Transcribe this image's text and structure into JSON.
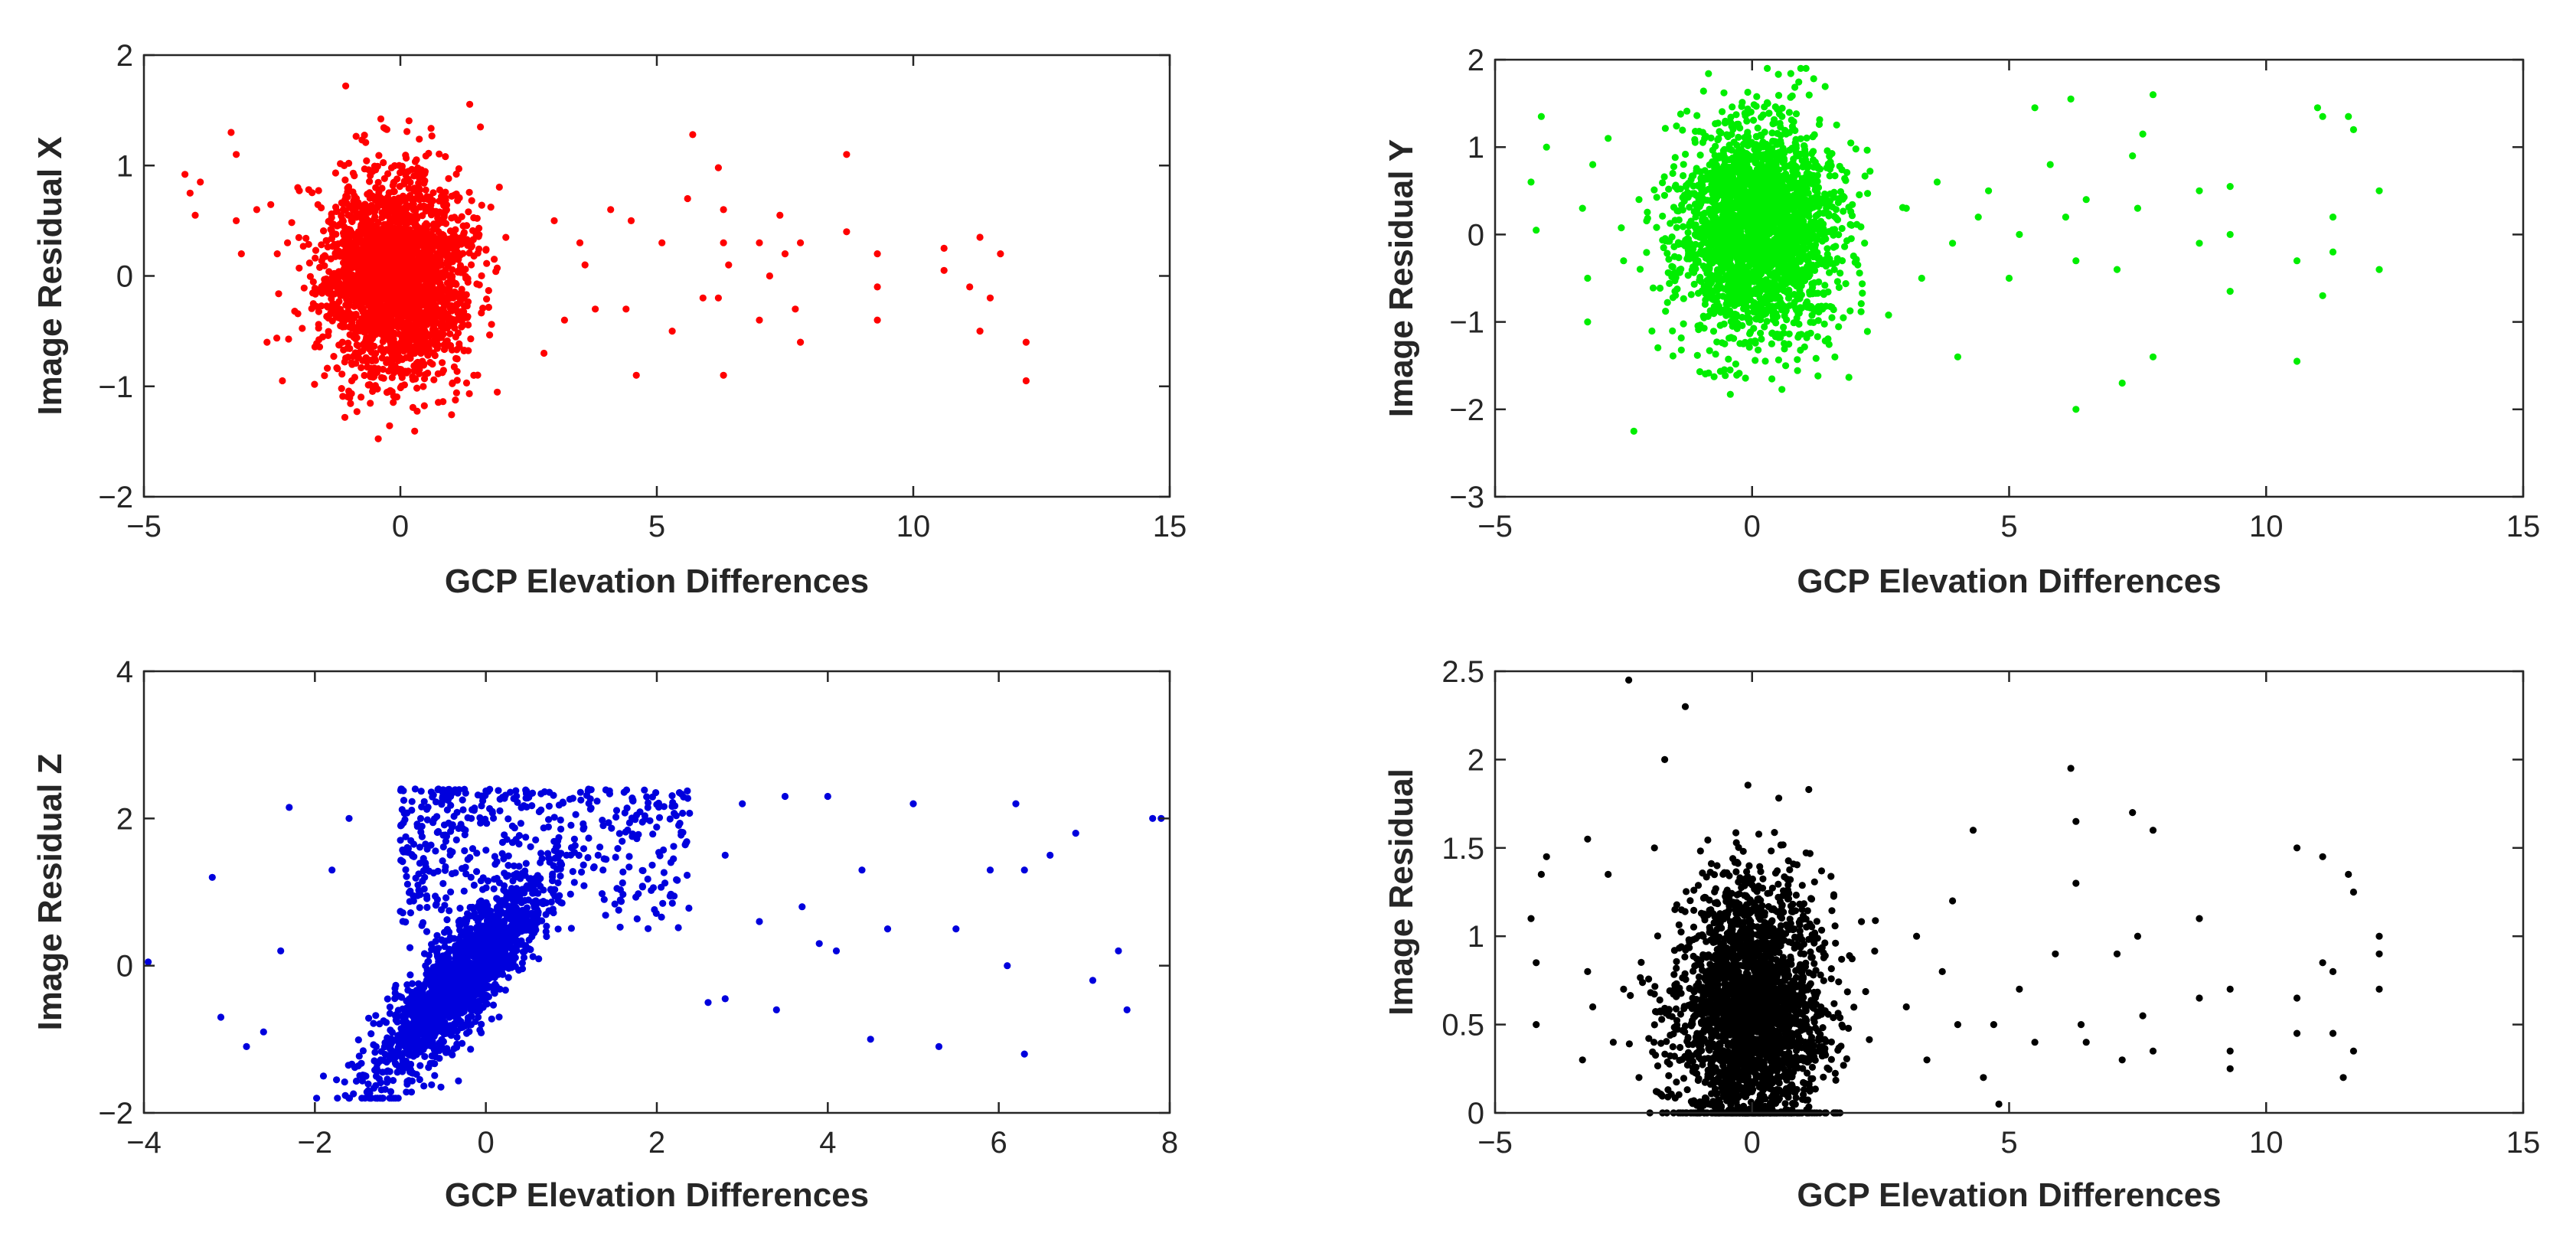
{
  "chart_data": [
    {
      "id": "residual-x",
      "type": "scatter",
      "title": "",
      "xlabel": "GCP Elevation Differences",
      "ylabel": "Image Residual X",
      "xlim": [
        -5,
        15
      ],
      "ylim": [
        -2,
        2
      ],
      "xticks": [
        -5,
        0,
        5,
        10,
        15
      ],
      "xtick_labels": [
        "−5",
        "0",
        "5",
        "10",
        "15"
      ],
      "yticks": [
        -2,
        -1,
        0,
        1,
        2
      ],
      "ytick_labels": [
        "−2",
        "−1",
        "0",
        "1",
        "2"
      ],
      "color": "#ff0000",
      "grid": false,
      "cloud": {
        "cx": -0.1,
        "cy": 0.0,
        "sx": 0.7,
        "sy": 0.45,
        "n": 2600,
        "rho": 0.0,
        "ymin": -1.6,
        "ymax": 1.75,
        "seed": 11
      },
      "points": [
        [
          -4.2,
          0.92
        ],
        [
          -4.1,
          0.75
        ],
        [
          -4.0,
          0.55
        ],
        [
          -3.9,
          0.85
        ],
        [
          -3.3,
          1.3
        ],
        [
          -3.2,
          1.1
        ],
        [
          -3.2,
          0.5
        ],
        [
          -3.1,
          0.2
        ],
        [
          -2.8,
          0.6
        ],
        [
          -2.6,
          -0.6
        ],
        [
          -2.4,
          0.2
        ],
        [
          -2.3,
          -0.95
        ],
        [
          -2.2,
          0.3
        ],
        [
          -2.0,
          0.8
        ],
        [
          2.8,
          -0.7
        ],
        [
          3.0,
          0.5
        ],
        [
          3.2,
          -0.4
        ],
        [
          3.5,
          0.3
        ],
        [
          3.6,
          0.1
        ],
        [
          3.8,
          -0.3
        ],
        [
          4.1,
          0.6
        ],
        [
          4.4,
          -0.3
        ],
        [
          4.5,
          0.5
        ],
        [
          4.6,
          -0.9
        ],
        [
          5.1,
          0.3
        ],
        [
          5.3,
          -0.5
        ],
        [
          5.6,
          0.7
        ],
        [
          5.7,
          1.28
        ],
        [
          5.9,
          -0.2
        ],
        [
          6.2,
          0.98
        ],
        [
          6.3,
          0.6
        ],
        [
          6.3,
          0.3
        ],
        [
          6.2,
          -0.2
        ],
        [
          6.3,
          -0.9
        ],
        [
          6.4,
          0.1
        ],
        [
          7.0,
          0.3
        ],
        [
          7.0,
          -0.4
        ],
        [
          7.2,
          0.0
        ],
        [
          7.4,
          0.55
        ],
        [
          7.5,
          0.2
        ],
        [
          7.7,
          -0.3
        ],
        [
          7.8,
          0.3
        ],
        [
          7.8,
          -0.6
        ],
        [
          8.7,
          1.1
        ],
        [
          8.7,
          0.4
        ],
        [
          9.3,
          0.2
        ],
        [
          9.3,
          -0.1
        ],
        [
          9.3,
          -0.4
        ],
        [
          10.6,
          0.25
        ],
        [
          10.6,
          0.05
        ],
        [
          11.1,
          -0.1
        ],
        [
          11.3,
          0.35
        ],
        [
          11.3,
          -0.5
        ],
        [
          11.5,
          -0.2
        ],
        [
          11.7,
          0.2
        ],
        [
          12.2,
          -0.6
        ],
        [
          12.2,
          -0.95
        ]
      ]
    },
    {
      "id": "residual-y",
      "type": "scatter",
      "title": "",
      "xlabel": "GCP Elevation Differences",
      "ylabel": "Image Residual Y",
      "xlim": [
        -5,
        15
      ],
      "ylim": [
        -3,
        2
      ],
      "xticks": [
        -5,
        0,
        5,
        10,
        15
      ],
      "xtick_labels": [
        "−5",
        "0",
        "5",
        "10",
        "15"
      ],
      "yticks": [
        -3,
        -2,
        -1,
        0,
        1,
        2
      ],
      "ytick_labels": [
        "−3",
        "−2",
        "−1",
        "0",
        "1",
        "2"
      ],
      "color": "#00ee00",
      "grid": false,
      "cloud": {
        "cx": 0.1,
        "cy": 0.05,
        "sx": 0.75,
        "sy": 0.6,
        "n": 2600,
        "rho": 0.0,
        "ymin": -2.3,
        "ymax": 1.9,
        "seed": 23
      },
      "points": [
        [
          -4.3,
          0.6
        ],
        [
          -4.2,
          0.05
        ],
        [
          -4.1,
          1.35
        ],
        [
          -4.0,
          1.0
        ],
        [
          -3.3,
          0.3
        ],
        [
          -3.2,
          -0.5
        ],
        [
          -3.2,
          -1.0
        ],
        [
          -3.1,
          0.8
        ],
        [
          -2.8,
          1.1
        ],
        [
          -2.5,
          -0.3
        ],
        [
          -2.3,
          -2.25
        ],
        [
          -2.2,
          0.4
        ],
        [
          3.0,
          0.3
        ],
        [
          3.3,
          -0.5
        ],
        [
          3.6,
          0.6
        ],
        [
          3.9,
          -0.1
        ],
        [
          4.0,
          -1.4
        ],
        [
          4.4,
          0.2
        ],
        [
          4.6,
          0.5
        ],
        [
          5.0,
          -0.5
        ],
        [
          5.2,
          0.0
        ],
        [
          5.5,
          1.45
        ],
        [
          5.8,
          0.8
        ],
        [
          6.1,
          0.2
        ],
        [
          6.2,
          1.55
        ],
        [
          6.3,
          -0.3
        ],
        [
          6.3,
          -2.0
        ],
        [
          6.5,
          0.4
        ],
        [
          7.1,
          -0.4
        ],
        [
          7.2,
          -1.7
        ],
        [
          7.4,
          0.9
        ],
        [
          7.5,
          0.3
        ],
        [
          7.6,
          1.15
        ],
        [
          7.8,
          1.6
        ],
        [
          7.8,
          -1.4
        ],
        [
          8.7,
          0.5
        ],
        [
          8.7,
          -0.1
        ],
        [
          9.3,
          0.55
        ],
        [
          9.3,
          0.0
        ],
        [
          9.3,
          -0.65
        ],
        [
          10.6,
          -0.3
        ],
        [
          10.6,
          -1.45
        ],
        [
          11.0,
          1.45
        ],
        [
          11.1,
          1.35
        ],
        [
          11.1,
          -0.7
        ],
        [
          11.3,
          0.2
        ],
        [
          11.3,
          -0.2
        ],
        [
          11.6,
          1.35
        ],
        [
          11.7,
          1.2
        ],
        [
          12.2,
          0.5
        ],
        [
          12.2,
          -0.4
        ]
      ]
    },
    {
      "id": "residual-z",
      "type": "scatter",
      "title": "",
      "xlabel": "GCP Elevation Differences",
      "ylabel": "Image Residual Z",
      "xlim": [
        -4,
        8
      ],
      "ylim": [
        -2,
        4
      ],
      "xticks": [
        -4,
        -2,
        0,
        2,
        4,
        6,
        8
      ],
      "xtick_labels": [
        "−4",
        "−2",
        "0",
        "2",
        "4",
        "6",
        "8"
      ],
      "yticks": [
        -2,
        0,
        2,
        4
      ],
      "ytick_labels": [
        "−2",
        "0",
        "2",
        "4"
      ],
      "color": "#0000dd",
      "grid": false,
      "cloud": {
        "cx": -0.3,
        "cy": -0.2,
        "sx": 0.5,
        "sy": 0.7,
        "n": 1800,
        "rho": 0.85,
        "ymin": -1.8,
        "ymax": 2.4,
        "seed": 37
      },
      "band": {
        "xmin": -1.0,
        "xmax": 2.4,
        "ymin": 0.5,
        "ymax": 2.4,
        "n": 450,
        "seed": 41
      },
      "points": [
        [
          -3.95,
          0.05
        ],
        [
          -3.2,
          1.2
        ],
        [
          -3.1,
          -0.7
        ],
        [
          -2.8,
          -1.1
        ],
        [
          -2.6,
          -0.9
        ],
        [
          -2.4,
          0.2
        ],
        [
          -2.3,
          2.15
        ],
        [
          -1.9,
          -1.5
        ],
        [
          -1.8,
          1.3
        ],
        [
          -1.6,
          2.0
        ],
        [
          2.6,
          -0.5
        ],
        [
          2.8,
          1.5
        ],
        [
          2.8,
          -0.45
        ],
        [
          3.0,
          2.2
        ],
        [
          3.2,
          0.6
        ],
        [
          3.4,
          -0.6
        ],
        [
          3.5,
          2.3
        ],
        [
          3.7,
          0.8
        ],
        [
          3.9,
          0.3
        ],
        [
          4.0,
          2.3
        ],
        [
          4.1,
          0.2
        ],
        [
          4.4,
          1.3
        ],
        [
          4.5,
          -1.0
        ],
        [
          4.7,
          0.5
        ],
        [
          5.0,
          2.2
        ],
        [
          5.3,
          -1.1
        ],
        [
          5.5,
          0.5
        ],
        [
          5.9,
          1.3
        ],
        [
          6.1,
          0.0
        ],
        [
          6.2,
          2.2
        ],
        [
          6.3,
          1.3
        ],
        [
          6.3,
          -1.2
        ],
        [
          6.6,
          1.5
        ],
        [
          6.9,
          1.8
        ],
        [
          7.1,
          -0.2
        ],
        [
          7.4,
          0.2
        ],
        [
          7.5,
          -0.6
        ],
        [
          7.8,
          2.0
        ],
        [
          7.9,
          2.0
        ]
      ]
    },
    {
      "id": "residual-total",
      "type": "scatter",
      "title": "",
      "xlabel": "GCP Elevation Differences",
      "ylabel": "Image Residual",
      "xlim": [
        -5,
        15
      ],
      "ylim": [
        0,
        2.5
      ],
      "xticks": [
        -5,
        0,
        5,
        10,
        15
      ],
      "xtick_labels": [
        "−5",
        "0",
        "5",
        "10",
        "15"
      ],
      "yticks": [
        0,
        0.5,
        1,
        1.5,
        2,
        2.5
      ],
      "ytick_labels": [
        "0",
        "0.5",
        "1",
        "1.5",
        "2",
        "2.5"
      ],
      "color": "#000000",
      "grid": false,
      "cloud": {
        "cx": 0.0,
        "cy": 0.55,
        "sx": 0.7,
        "sy": 0.38,
        "n": 2600,
        "rho": 0.0,
        "ymin": 0.0,
        "ymax": 2.3,
        "seed": 53
      },
      "points": [
        [
          -4.3,
          1.1
        ],
        [
          -4.2,
          0.85
        ],
        [
          -4.1,
          1.35
        ],
        [
          -4.0,
          1.45
        ],
        [
          -4.2,
          0.5
        ],
        [
          -3.3,
          0.3
        ],
        [
          -3.2,
          1.55
        ],
        [
          -3.2,
          0.8
        ],
        [
          -3.1,
          0.6
        ],
        [
          -2.8,
          1.35
        ],
        [
          -2.7,
          0.4
        ],
        [
          -2.5,
          0.7
        ],
        [
          -2.4,
          2.45
        ],
        [
          -2.2,
          0.2
        ],
        [
          -1.9,
          1.5
        ],
        [
          -1.7,
          2.0
        ],
        [
          -1.3,
          2.3
        ],
        [
          3.0,
          0.6
        ],
        [
          3.2,
          1.0
        ],
        [
          3.4,
          0.3
        ],
        [
          3.7,
          0.8
        ],
        [
          3.9,
          1.2
        ],
        [
          4.0,
          0.5
        ],
        [
          4.3,
          1.6
        ],
        [
          4.5,
          0.2
        ],
        [
          4.7,
          0.5
        ],
        [
          4.8,
          0.05
        ],
        [
          5.2,
          0.7
        ],
        [
          5.5,
          0.4
        ],
        [
          5.9,
          0.9
        ],
        [
          6.2,
          1.95
        ],
        [
          6.3,
          1.65
        ],
        [
          6.3,
          1.3
        ],
        [
          6.4,
          0.5
        ],
        [
          6.5,
          0.4
        ],
        [
          7.1,
          0.9
        ],
        [
          7.2,
          0.3
        ],
        [
          7.4,
          1.7
        ],
        [
          7.5,
          1.0
        ],
        [
          7.6,
          0.55
        ],
        [
          7.8,
          1.6
        ],
        [
          7.8,
          0.35
        ],
        [
          8.7,
          1.1
        ],
        [
          8.7,
          0.65
        ],
        [
          9.3,
          0.7
        ],
        [
          9.3,
          0.35
        ],
        [
          9.3,
          0.25
        ],
        [
          10.6,
          0.65
        ],
        [
          10.6,
          0.45
        ],
        [
          10.6,
          1.5
        ],
        [
          11.1,
          1.45
        ],
        [
          11.1,
          0.85
        ],
        [
          11.3,
          0.8
        ],
        [
          11.3,
          0.45
        ],
        [
          11.5,
          0.2
        ],
        [
          11.6,
          1.35
        ],
        [
          11.7,
          1.25
        ],
        [
          11.7,
          0.35
        ],
        [
          12.2,
          1.0
        ],
        [
          12.2,
          0.9
        ],
        [
          12.2,
          0.7
        ]
      ]
    }
  ]
}
